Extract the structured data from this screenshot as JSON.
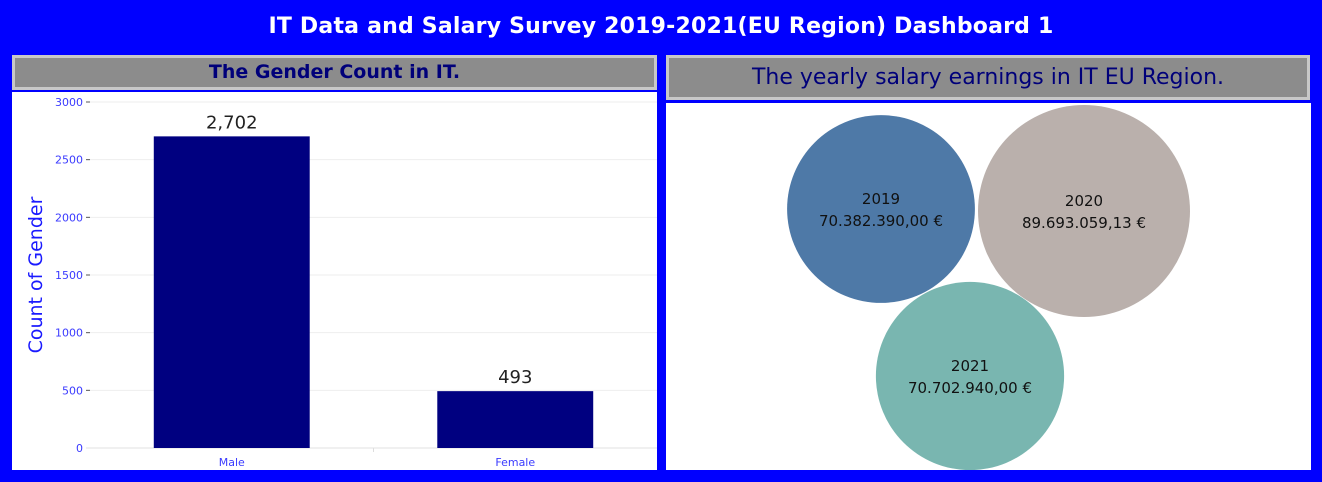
{
  "dashboard": {
    "title": "IT Data and Salary Survey 2019-2021(EU Region) Dashboard 1"
  },
  "gender_panel": {
    "title": "The Gender Count in IT."
  },
  "salary_panel": {
    "title": "The yearly salary earnings in IT EU Region."
  },
  "chart_data": [
    {
      "type": "bar",
      "title": "The Gender Count in IT.",
      "categories": [
        "Male",
        "Female"
      ],
      "values": [
        2702,
        493
      ],
      "value_labels": [
        "2,702",
        "493"
      ],
      "ylabel": "Count of Gender",
      "ylim": [
        0,
        3000
      ],
      "yticks": [
        0,
        500,
        1000,
        1500,
        2000,
        2500,
        3000
      ],
      "grid": true,
      "bar_color": "#000080",
      "tick_color": "#3a3aff"
    },
    {
      "type": "bubble",
      "title": "The yearly salary earnings in IT EU Region.",
      "items": [
        {
          "year": "2019",
          "value": 70382390.0,
          "label": "70.382.390,00 €",
          "color": "#4e79a7"
        },
        {
          "year": "2020",
          "value": 89693059.13,
          "label": "89.693.059,13 €",
          "color": "#bab0ac"
        },
        {
          "year": "2021",
          "value": 70702940.0,
          "label": "70.702.940,00 €",
          "color": "#79b6b0"
        }
      ]
    }
  ]
}
